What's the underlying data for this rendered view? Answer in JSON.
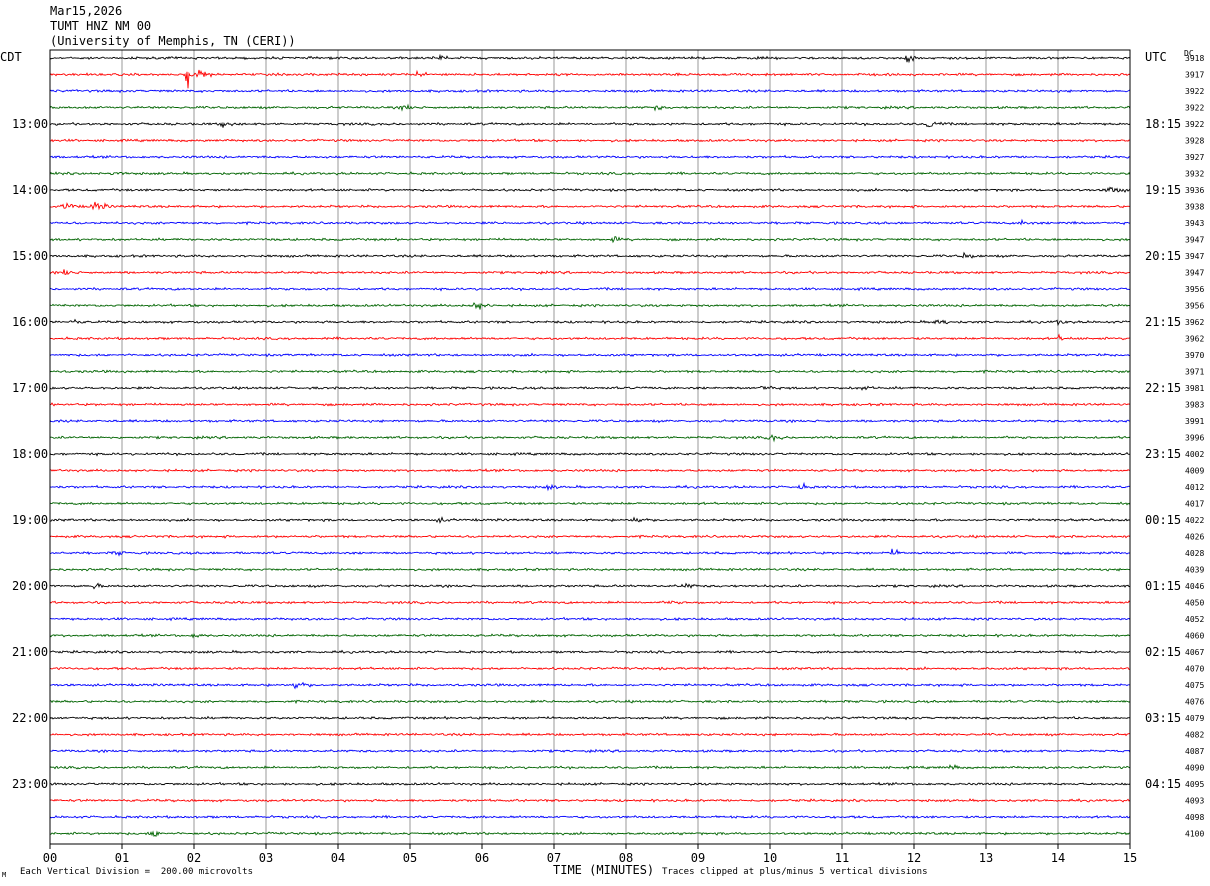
{
  "header": {
    "date": "Mar15,2026",
    "station": "TUMT HNZ NM 00",
    "network": "(University of Memphis, TN (CERI))"
  },
  "labels": {
    "left_timezone": "CDT",
    "right_timezone": "UTC",
    "dc_header": "DC",
    "x_axis_title": "TIME (MINUTES)",
    "scale_note": "Each Vertical Division =  200.00 microvolts",
    "clip_note": "Traces clipped at plus/minus 5 vertical divisions",
    "corner_mark": "M"
  },
  "colors": {
    "trace_cycle": [
      "#000000",
      "#ff0000",
      "#0000ff",
      "#006400"
    ],
    "grid": "#808080",
    "frame": "#000000"
  },
  "chart_data": {
    "type": "line",
    "title": "TUMT HNZ NM 00",
    "xlabel": "TIME (MINUTES)",
    "ylabel": "",
    "xlim": [
      0,
      15
    ],
    "x_ticks": [
      "00",
      "01",
      "02",
      "03",
      "04",
      "05",
      "06",
      "07",
      "08",
      "09",
      "10",
      "11",
      "12",
      "13",
      "14",
      "15"
    ],
    "rows_per_hour": 4,
    "trace_count": 48,
    "left_hour_labels": [
      "13:00",
      "14:00",
      "15:00",
      "16:00",
      "17:00",
      "18:00",
      "19:00",
      "20:00",
      "21:00",
      "22:00",
      "23:00"
    ],
    "right_hour_labels": [
      "18:15",
      "19:15",
      "20:15",
      "21:15",
      "22:15",
      "23:15",
      "00:15",
      "01:15",
      "02:15",
      "03:15",
      "04:15"
    ],
    "dc_offsets": [
      3918,
      3917,
      3922,
      3922,
      3922,
      3928,
      3927,
      3932,
      3936,
      3938,
      3943,
      3947,
      3947,
      3947,
      3956,
      3956,
      3962,
      3962,
      3970,
      3971,
      3981,
      3983,
      3991,
      3996,
      4002,
      4009,
      4012,
      4017,
      4022,
      4026,
      4028,
      4039,
      4046,
      4050,
      4052,
      4060,
      4067,
      4070,
      4075,
      4076,
      4079,
      4082,
      4087,
      4090,
      4095,
      4093,
      4098,
      4100
    ],
    "vertical_division_microvolts": 200.0,
    "clip_divisions": 5,
    "events": [
      {
        "row": 0,
        "minute": 5.4,
        "amp": 7
      },
      {
        "row": 0,
        "minute": 11.9,
        "amp": 6
      },
      {
        "row": 1,
        "minute": 1.9,
        "amp": 18
      },
      {
        "row": 1,
        "minute": 2.1,
        "amp": 6
      },
      {
        "row": 1,
        "minute": 5.1,
        "amp": 5
      },
      {
        "row": 3,
        "minute": 4.9,
        "amp": 6
      },
      {
        "row": 3,
        "minute": 8.4,
        "amp": 5
      },
      {
        "row": 4,
        "minute": 2.4,
        "amp": 6
      },
      {
        "row": 4,
        "minute": 12.2,
        "amp": 8
      },
      {
        "row": 7,
        "minute": 0.9,
        "amp": 5
      },
      {
        "row": 8,
        "minute": 14.7,
        "amp": 10
      },
      {
        "row": 9,
        "minute": 0.2,
        "amp": 8
      },
      {
        "row": 9,
        "minute": 0.6,
        "amp": 9
      },
      {
        "row": 10,
        "minute": 13.5,
        "amp": 6
      },
      {
        "row": 10,
        "minute": 14.1,
        "amp": 5
      },
      {
        "row": 11,
        "minute": 7.8,
        "amp": 5
      },
      {
        "row": 12,
        "minute": 12.7,
        "amp": 6
      },
      {
        "row": 13,
        "minute": 0.2,
        "amp": 6
      },
      {
        "row": 15,
        "minute": 5.9,
        "amp": 8
      },
      {
        "row": 16,
        "minute": 0.3,
        "amp": 5
      },
      {
        "row": 16,
        "minute": 12.3,
        "amp": 7
      },
      {
        "row": 16,
        "minute": 14.0,
        "amp": 5
      },
      {
        "row": 17,
        "minute": 14.0,
        "amp": 5
      },
      {
        "row": 20,
        "minute": 9.9,
        "amp": 6
      },
      {
        "row": 20,
        "minute": 11.3,
        "amp": 5
      },
      {
        "row": 23,
        "minute": 10.0,
        "amp": 7
      },
      {
        "row": 26,
        "minute": 6.9,
        "amp": 5
      },
      {
        "row": 26,
        "minute": 10.4,
        "amp": 6
      },
      {
        "row": 28,
        "minute": 5.4,
        "amp": 5
      },
      {
        "row": 28,
        "minute": 8.1,
        "amp": 7
      },
      {
        "row": 30,
        "minute": 0.9,
        "amp": 5
      },
      {
        "row": 30,
        "minute": 11.7,
        "amp": 6
      },
      {
        "row": 32,
        "minute": 0.6,
        "amp": 5
      },
      {
        "row": 32,
        "minute": 8.8,
        "amp": 6
      },
      {
        "row": 33,
        "minute": 2.5,
        "amp": 4
      },
      {
        "row": 33,
        "minute": 8.6,
        "amp": 4
      },
      {
        "row": 34,
        "minute": 12.5,
        "amp": 4
      },
      {
        "row": 35,
        "minute": 2.0,
        "amp": 5
      },
      {
        "row": 38,
        "minute": 3.4,
        "amp": 8
      },
      {
        "row": 43,
        "minute": 12.5,
        "amp": 5
      },
      {
        "row": 47,
        "minute": 1.4,
        "amp": 8
      }
    ]
  }
}
